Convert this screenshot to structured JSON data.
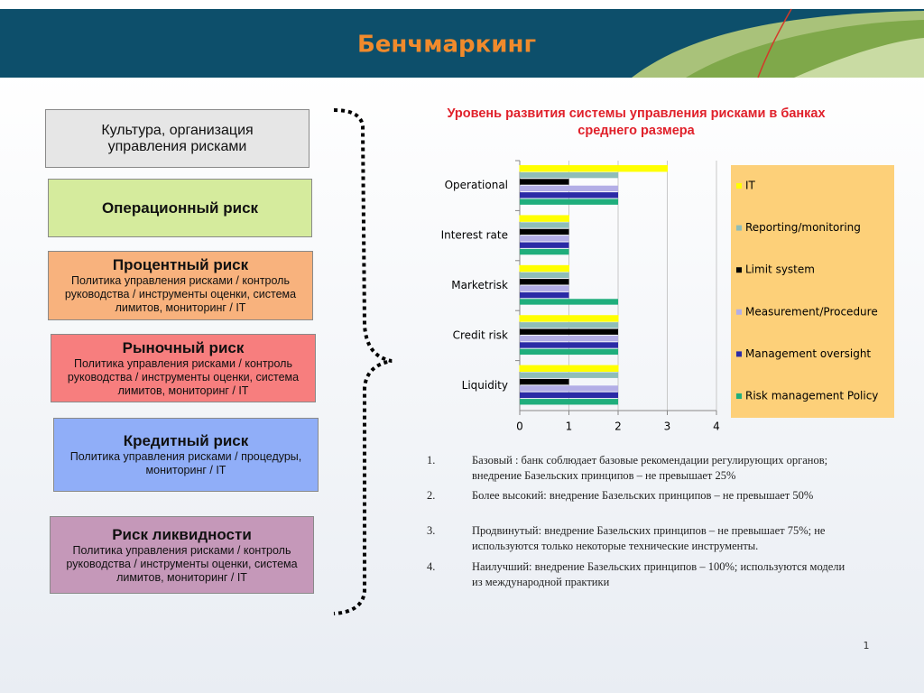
{
  "header": {
    "title": "Бенчмаркинг"
  },
  "boxes": [
    {
      "title": "Культура, организация управления рисками"
    },
    {
      "title": "Операционный риск"
    },
    {
      "title": "Процентный риск",
      "text": "Политика управления рисками /  контроль руководства / инструменты оценки, система лимитов, мониторинг / IT"
    },
    {
      "title": "Рыночный риск",
      "text": "Политика управления рисками /  контроль руководства / инструменты оценки, система лимитов, мониторинг / IT"
    },
    {
      "title": "Кредитный риск",
      "text": "Политика управления рисками / процедуры, мониторинг / IT"
    },
    {
      "title": "Риск ликвидности",
      "text": "Политика управления рисками /  контроль руководства / инструменты оценки, система лимитов, мониторинг / IT"
    }
  ],
  "chart_data": {
    "type": "hbar",
    "title": "Уровень развития  системы управления рисками в банках среднего размера",
    "categories": [
      "Operational",
      "Interest rate",
      "Marketrisk",
      "Credit risk",
      "Liquidity"
    ],
    "series": [
      {
        "name": "IT",
        "color": "#ffff00",
        "values": [
          3,
          1,
          1,
          2,
          2
        ]
      },
      {
        "name": "Reporting/monitoring",
        "color": "#8fbdb8",
        "values": [
          2,
          1,
          1,
          2,
          2
        ]
      },
      {
        "name": "Limit system",
        "color": "#000000",
        "values": [
          1,
          1,
          1,
          2,
          1
        ]
      },
      {
        "name": "Measurement/Procedure",
        "color": "#b3aee6",
        "values": [
          2,
          1,
          1,
          2,
          2
        ]
      },
      {
        "name": "Management oversight",
        "color": "#2b2ba6",
        "values": [
          2,
          1,
          1,
          2,
          2
        ]
      },
      {
        "name": "Risk management Policy",
        "color": "#1fae7c",
        "values": [
          2,
          1,
          2,
          2,
          2
        ]
      }
    ],
    "xlim": [
      0,
      4
    ],
    "xticks": [
      0,
      1,
      2,
      3,
      4
    ],
    "grid": true,
    "legend": "right"
  },
  "notes": [
    {
      "number": "1.",
      "text": "Базовый : банк соблюдает базовые рекомендации регулирующих органов; внедрение Базельских принципов – не превышает 25%"
    },
    {
      "number": "2.",
      "text": "Более высокий: внедрение Базельских принципов – не превышает 50%"
    },
    {
      "number": "3.",
      "text": "Продвинутый: внедрение Базельских принципов – не превышает 75%; не используются только некоторые технические инструменты."
    },
    {
      "number": "4.",
      "text": "Наилучший:  внедрение Базельских принципов – 100%; используются модели из международной практики"
    }
  ],
  "page_number": "1"
}
